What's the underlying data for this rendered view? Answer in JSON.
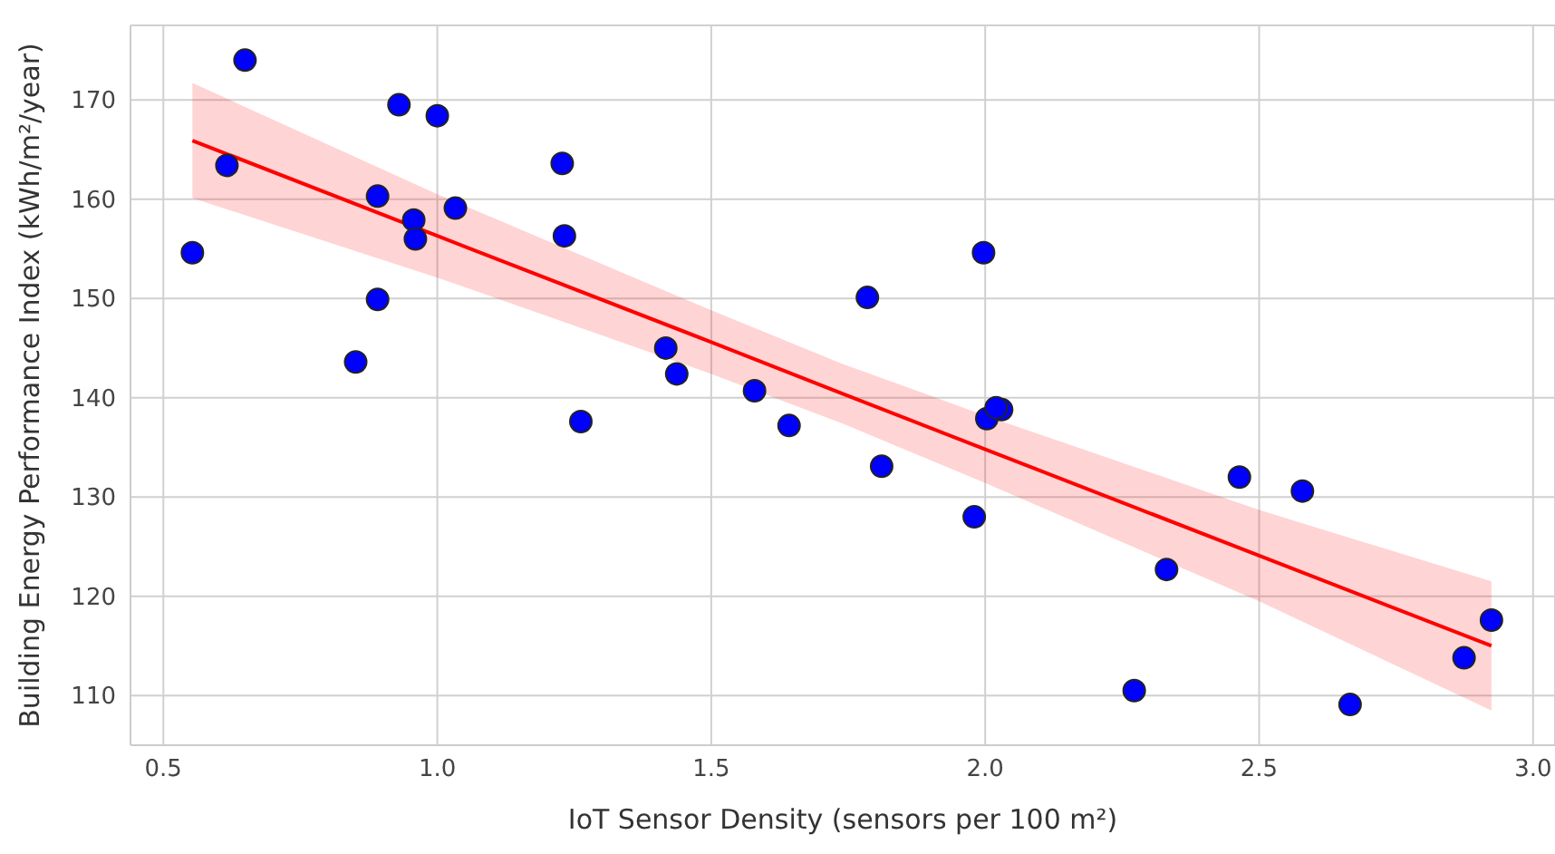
{
  "chart_data": {
    "type": "scatter",
    "xlabel": "IoT Sensor Density (sensors per 100 m²)",
    "ylabel": "Building Energy Performance Index (kWh/m²/year)",
    "xlim": [
      0.44,
      3.04
    ],
    "ylim": [
      105,
      177.5
    ],
    "xticks": [
      0.5,
      {
        "value": 1,
        "label": "1.0"
      },
      1.5,
      {
        "value": 2,
        "label": "2.0"
      },
      2.5,
      {
        "value": 3,
        "label": "3.0"
      }
    ],
    "yticks": [
      110,
      120,
      130,
      140,
      150,
      160,
      170
    ],
    "grid": true,
    "marker": "circle",
    "series": [
      {
        "color": "#0000ff",
        "x": [
          0.553,
          0.616,
          0.649,
          0.851,
          0.891,
          0.891,
          0.93,
          0.957,
          0.96,
          1.0,
          1.033,
          1.228,
          1.232,
          1.262,
          1.417,
          1.437,
          1.579,
          1.642,
          1.785,
          1.811,
          1.98,
          1.997,
          2.003,
          2.03,
          2.02,
          2.272,
          2.331,
          2.464,
          2.579,
          2.666,
          2.874,
          2.924
        ],
        "values": [
          154.6,
          163.4,
          174.0,
          143.6,
          149.9,
          160.3,
          169.5,
          157.9,
          156.0,
          168.4,
          159.1,
          163.6,
          156.3,
          137.6,
          145.0,
          142.4,
          140.7,
          137.2,
          150.1,
          133.1,
          128.0,
          154.6,
          137.9,
          138.8,
          139.0,
          110.5,
          122.7,
          132.0,
          130.6,
          109.1,
          113.8,
          117.6
        ]
      },
      {
        "type": "line",
        "color": "#ff0000",
        "marker": "none",
        "x": [
          0.553,
          1.0,
          1.5,
          1.74,
          2.0,
          2.5,
          2.924
        ],
        "values": [
          165.9,
          156.3,
          145.6,
          140.4,
          134.8,
          124.1,
          115.0
        ],
        "lower": [
          160.1,
          152.1,
          142.4,
          137.4,
          131.4,
          119.5,
          108.5
        ],
        "upper": [
          171.7,
          160.5,
          148.8,
          143.4,
          138.2,
          128.7,
          121.5
        ]
      }
    ]
  }
}
